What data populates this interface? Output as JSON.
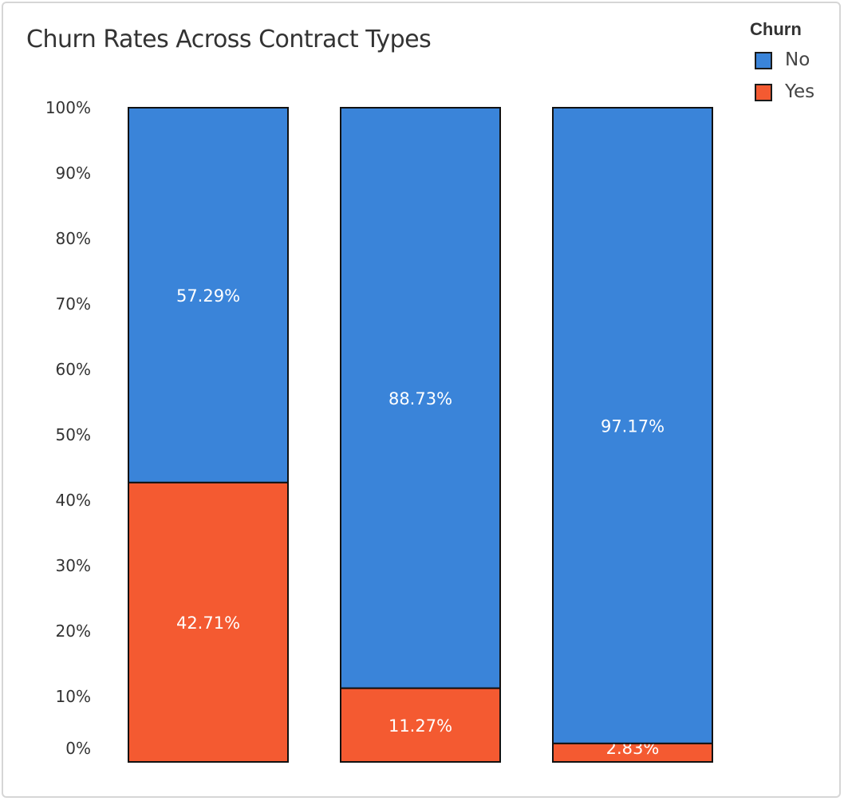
{
  "colors": {
    "no": "#3a84d9",
    "yes": "#f45a31",
    "border": "#111111"
  },
  "chart_data": {
    "type": "bar",
    "stacked": true,
    "title": "Churn Rates Across Contract Types",
    "xlabel": "",
    "ylabel": "",
    "ylim": [
      0,
      100
    ],
    "y_ticks": [
      "0%",
      "10%",
      "20%",
      "30%",
      "40%",
      "50%",
      "60%",
      "70%",
      "80%",
      "90%",
      "100%"
    ],
    "y_tick_values": [
      0,
      10,
      20,
      30,
      40,
      50,
      60,
      70,
      80,
      90,
      100
    ],
    "categories": [
      "",
      "",
      ""
    ],
    "series": [
      {
        "name": "Yes",
        "values": [
          42.71,
          11.27,
          2.83
        ],
        "labels": [
          "42.71%",
          "11.27%",
          "2.83%"
        ]
      },
      {
        "name": "No",
        "values": [
          57.29,
          88.73,
          97.17
        ],
        "labels": [
          "57.29%",
          "88.73%",
          "97.17%"
        ]
      }
    ],
    "legend": {
      "title": "Churn",
      "position": "top-right",
      "items": [
        "No",
        "Yes"
      ]
    },
    "grid": false
  }
}
